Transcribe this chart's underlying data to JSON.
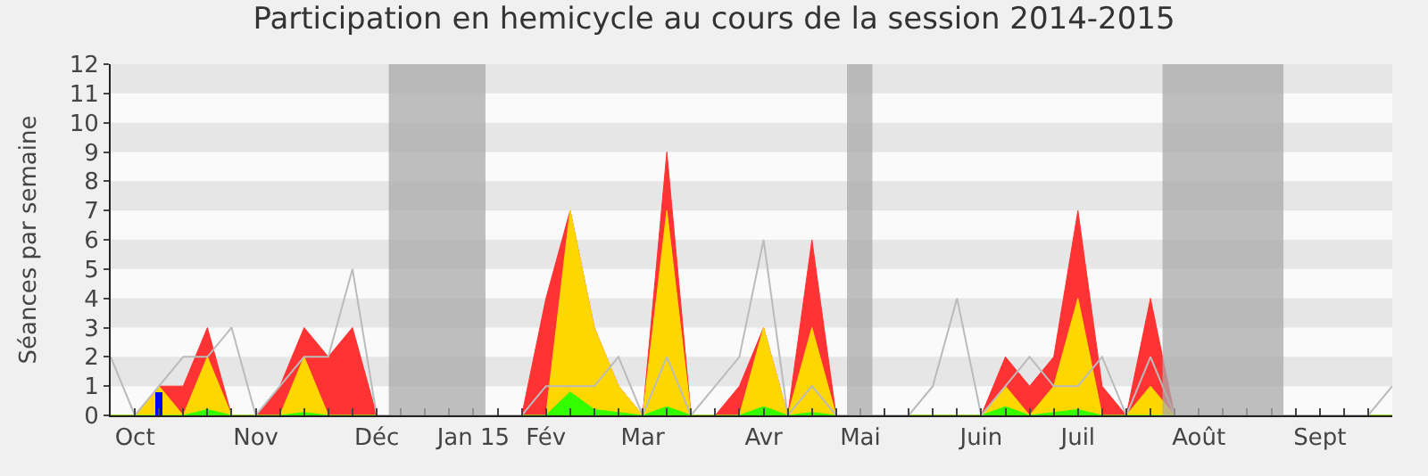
{
  "chart_data": {
    "type": "area",
    "title": "Participation en hemicycle au cours de la session 2014-2015",
    "ylabel": "Séances par semaine",
    "categories": [
      null,
      "Oct",
      null,
      null,
      null,
      null,
      "Nov",
      null,
      null,
      null,
      null,
      "Déc",
      null,
      null,
      null,
      "Jan 15",
      null,
      null,
      "Fév",
      null,
      null,
      null,
      "Mar",
      null,
      null,
      null,
      null,
      "Avr",
      null,
      null,
      null,
      "Mai",
      null,
      null,
      null,
      null,
      "Juin",
      null,
      null,
      null,
      "Juil",
      null,
      null,
      null,
      null,
      "Août",
      null,
      null,
      null,
      null,
      "Sept",
      null,
      null,
      null
    ],
    "series": [
      {
        "color": "#ff3333",
        "values": [
          0,
          0,
          1,
          1,
          3,
          0,
          0,
          1,
          3,
          2,
          3,
          0,
          0,
          0,
          0,
          0,
          0,
          0,
          4,
          7,
          3,
          1,
          0,
          9,
          0,
          0,
          1,
          3,
          0,
          6,
          0,
          0,
          0,
          0,
          0,
          0,
          0,
          2,
          1,
          2,
          7,
          1,
          0,
          4,
          0,
          0,
          0,
          0,
          0,
          0,
          0,
          0,
          0,
          0
        ]
      },
      {
        "color": "#ffd700",
        "values": [
          0,
          0,
          1,
          0,
          2,
          0,
          0,
          0,
          2,
          0,
          0,
          0,
          0,
          0,
          0,
          0,
          0,
          0,
          0,
          7,
          3,
          1,
          0,
          7,
          0,
          0,
          0,
          3,
          0,
          3,
          0,
          0,
          0,
          0,
          0,
          0,
          0,
          1,
          0,
          1,
          4,
          0,
          0,
          1,
          0,
          0,
          0,
          0,
          0,
          0,
          0,
          0,
          0,
          0
        ]
      },
      {
        "color": "#33ff00",
        "values": [
          0,
          0,
          0,
          0,
          0.2,
          0,
          0,
          0,
          0.1,
          0,
          0,
          0,
          0,
          0,
          0,
          0,
          0,
          0,
          0,
          0.8,
          0.2,
          0.1,
          0,
          0.3,
          0,
          0,
          0,
          0.3,
          0,
          0.1,
          0,
          0,
          0,
          0,
          0,
          0,
          0,
          0.3,
          0,
          0.1,
          0.2,
          0,
          0,
          0,
          0,
          0,
          0,
          0,
          0,
          0,
          0,
          0,
          0,
          0
        ]
      },
      {
        "type": "line",
        "color": "#bbbbbb",
        "values": [
          2,
          0,
          1,
          2,
          2,
          3,
          0,
          1,
          2,
          2,
          5,
          0,
          0,
          0,
          0,
          0,
          0,
          0,
          1,
          1,
          1,
          2,
          0,
          2,
          0,
          1,
          2,
          6,
          0,
          1,
          0,
          0,
          0,
          0,
          1,
          4,
          0,
          1,
          2,
          1,
          1,
          2,
          0,
          2,
          0,
          0,
          0,
          0,
          0,
          0,
          0,
          0,
          0,
          1
        ]
      },
      {
        "type": "bar",
        "color": "#0000ff",
        "values": [
          null,
          null,
          0.8,
          null,
          null,
          null,
          null,
          null,
          null,
          null,
          null,
          null,
          null,
          null,
          null,
          null,
          null,
          null,
          null,
          null,
          null,
          null,
          null,
          null,
          null,
          null,
          null,
          null,
          null,
          null,
          null,
          null,
          null,
          null,
          null,
          null,
          null,
          null,
          null,
          null,
          null,
          null,
          null,
          null,
          null,
          null,
          null,
          null,
          null,
          null,
          null,
          null,
          null,
          null
        ]
      }
    ],
    "ylim": [
      0,
      12
    ],
    "yticks": [
      0,
      1,
      2,
      3,
      4,
      5,
      6,
      7,
      8,
      9,
      10,
      11,
      12
    ]
  }
}
